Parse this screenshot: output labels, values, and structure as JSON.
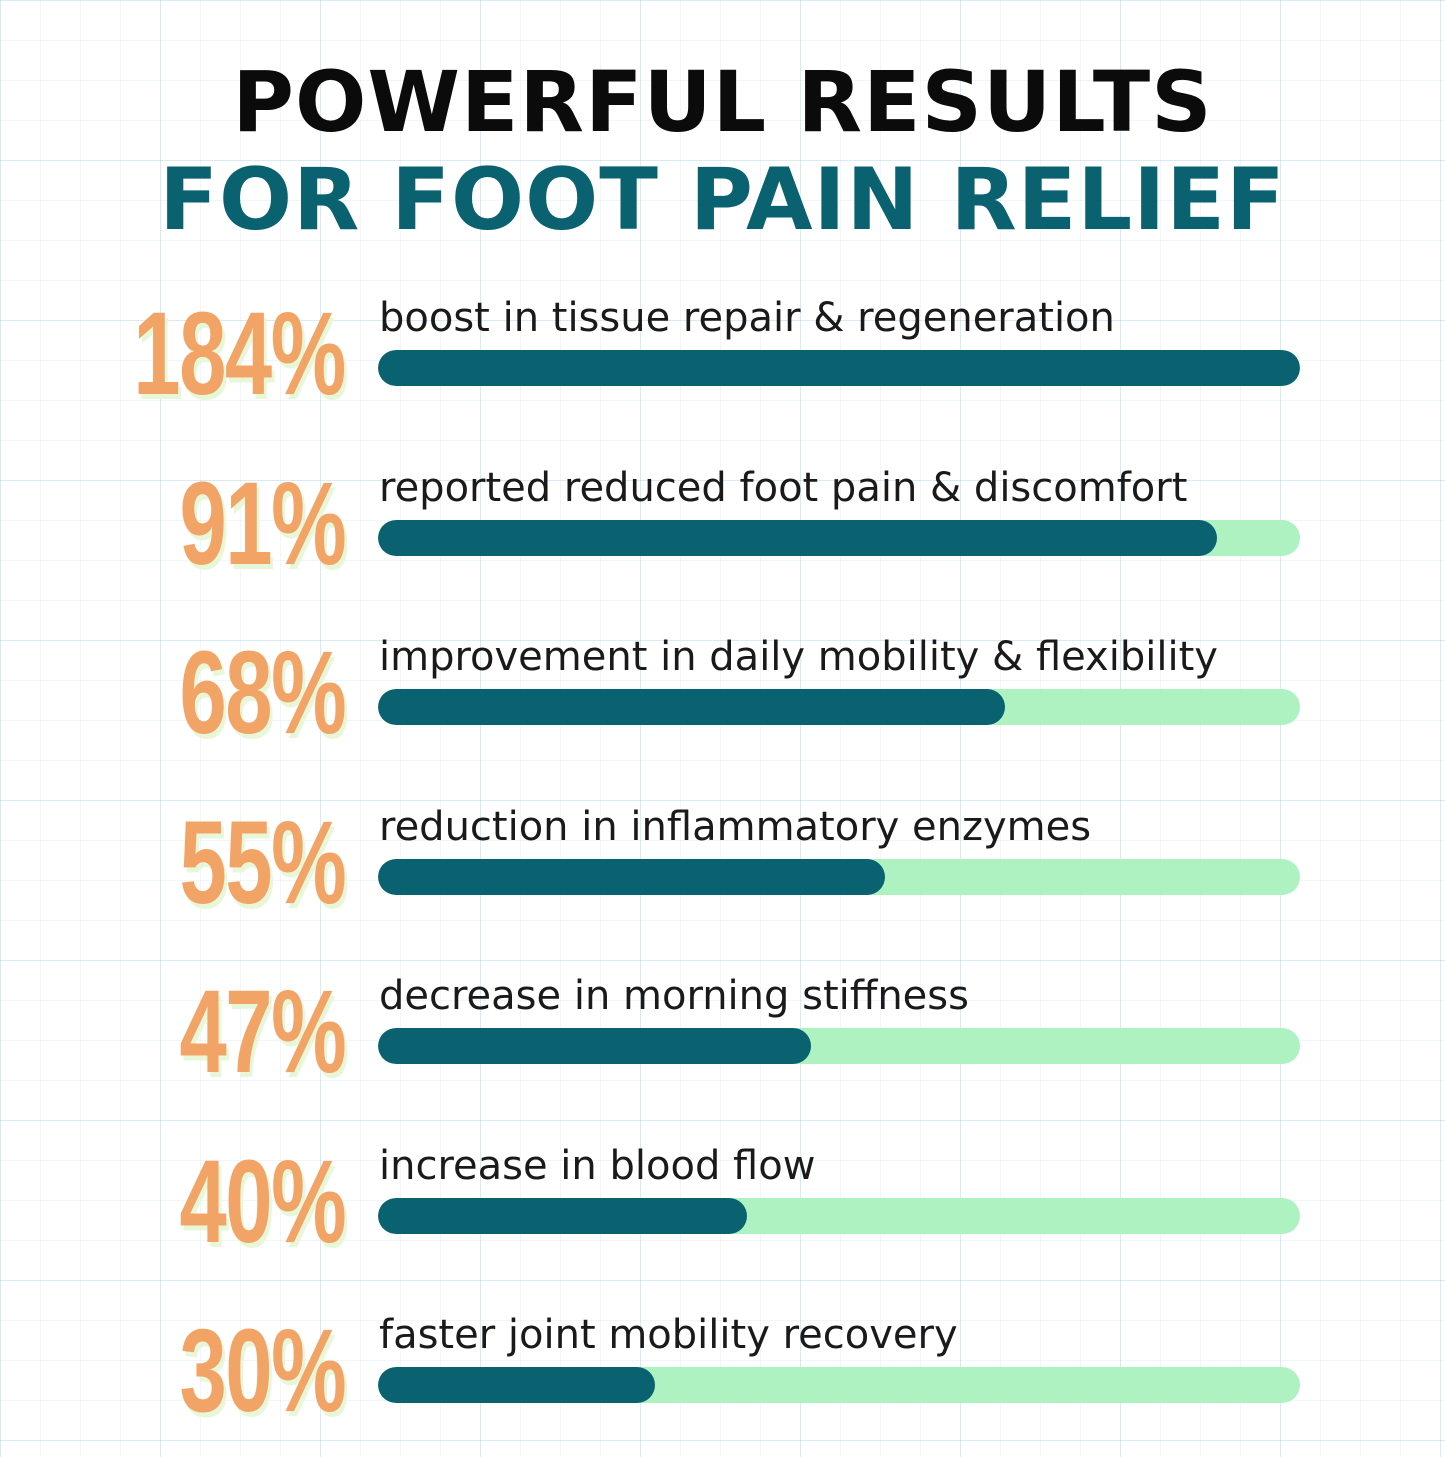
{
  "header": {
    "title_line1": "POWERFUL RESULTS",
    "title_line2": "FOR FOOT PAIN RELIEF"
  },
  "colors": {
    "title_dark": "#0b0b0b",
    "title_accent": "#0a6170",
    "percent": "#f2a466",
    "bar_fill": "#0a6170",
    "bar_track": "#aef2c2"
  },
  "chart_data": {
    "type": "bar",
    "orientation": "horizontal",
    "title": "POWERFUL RESULTS FOR FOOT PAIN RELIEF",
    "items": [
      {
        "value_label": "184%",
        "value": 184,
        "label": "boost in tissue repair & regeneration",
        "fill_fraction": 1.0
      },
      {
        "value_label": "91%",
        "value": 91,
        "label": "reported reduced foot pain & discomfort",
        "fill_fraction": 0.91
      },
      {
        "value_label": "68%",
        "value": 68,
        "label": "improvement in daily mobility & flexibility",
        "fill_fraction": 0.68
      },
      {
        "value_label": "55%",
        "value": 55,
        "label": "reduction in inflammatory enzymes",
        "fill_fraction": 0.55
      },
      {
        "value_label": "47%",
        "value": 47,
        "label": "decrease in morning stiffness",
        "fill_fraction": 0.47
      },
      {
        "value_label": "40%",
        "value": 40,
        "label": "increase in blood flow",
        "fill_fraction": 0.4
      },
      {
        "value_label": "30%",
        "value": 30,
        "label": "faster joint mobility recovery",
        "fill_fraction": 0.3
      }
    ]
  }
}
